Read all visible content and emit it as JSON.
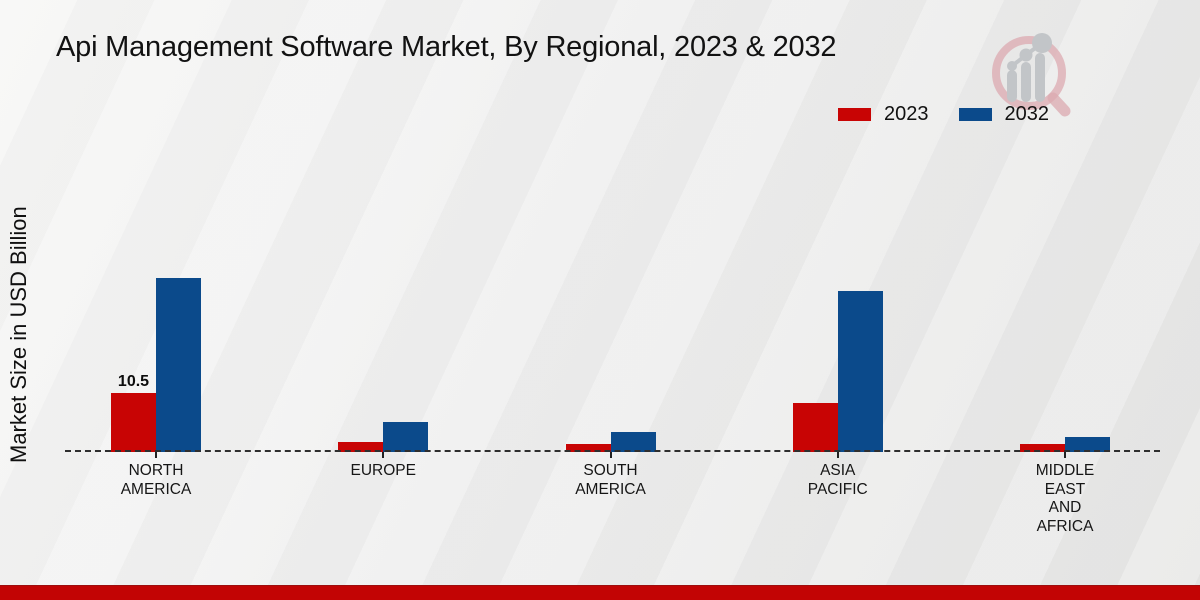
{
  "header": {
    "title": "Api Management Software Market, By Regional, 2023 & 2032"
  },
  "chart_data": {
    "type": "bar",
    "title": "Api Management Software Market, By Regional, 2023 & 2032",
    "ylabel": "Market Size in USD Billion",
    "xlabel": "",
    "categories": [
      "NORTH AMERICA",
      "EUROPE",
      "SOUTH AMERICA",
      "ASIA PACIFIC",
      "MIDDLE EAST AND AFRICA"
    ],
    "category_lines": [
      [
        "NORTH",
        "AMERICA"
      ],
      [
        "EUROPE"
      ],
      [
        "SOUTH",
        "AMERICA"
      ],
      [
        "ASIA",
        "PACIFIC"
      ],
      [
        "MIDDLE",
        "EAST",
        "AND",
        "AFRICA"
      ]
    ],
    "series": [
      {
        "name": "2023",
        "color": "#c80404",
        "values": [
          10.5,
          1.8,
          1.4,
          8.7,
          1.4
        ],
        "point_labels": [
          "10.5",
          "",
          "",
          "",
          ""
        ]
      },
      {
        "name": "2032",
        "color": "#0b4a8b",
        "values": [
          31.0,
          5.4,
          3.6,
          28.7,
          2.7
        ],
        "point_labels": [
          "",
          "",
          "",
          "",
          ""
        ]
      }
    ],
    "ylim": [
      0,
      35
    ],
    "grid": false,
    "legend_position": "top-right",
    "baseline_style": "dashed",
    "background": "light-gray-gradient"
  },
  "colors": {
    "series_2023": "#c80404",
    "series_2032": "#0b4a8b",
    "footer_strip": "#c20404",
    "axis_line": "#2e2e2e",
    "text": "#121212",
    "logo_ring": "#dcaab0",
    "logo_bars": "#c2c5c8"
  },
  "icons": {
    "brand_logo": "magnifier-with-growth-bars-icon"
  },
  "footer": {}
}
